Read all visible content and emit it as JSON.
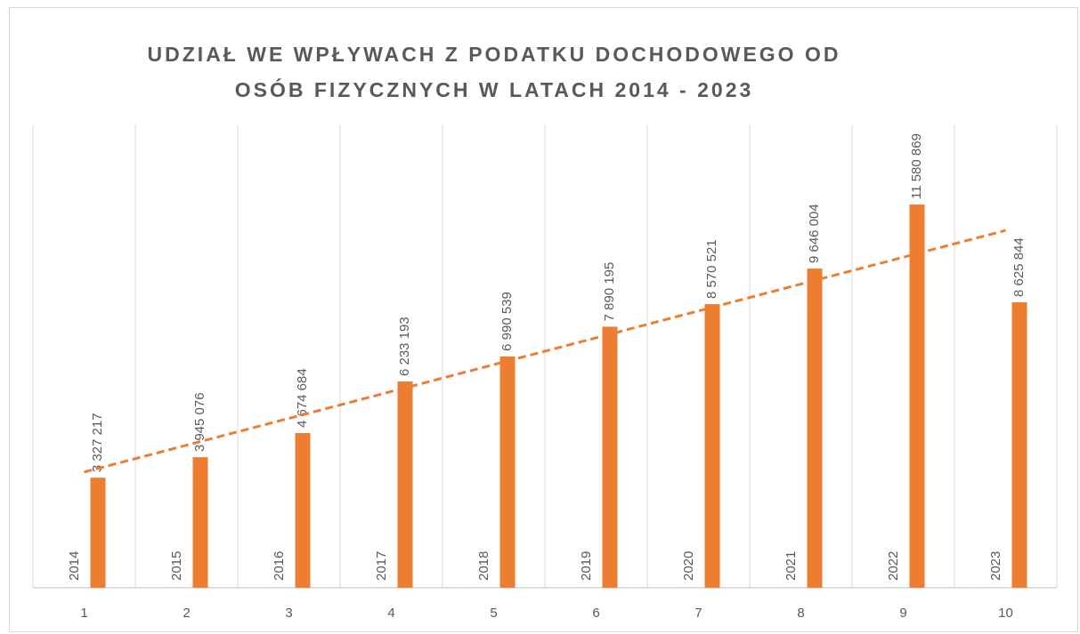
{
  "chart_data": {
    "type": "bar",
    "title": [
      "UDZIAŁ WE WPŁYWACH Z PODATKU DOCHODOWEGO OD",
      "OSÓB FIZYCZNYCH W LATACH 2014 - 2023"
    ],
    "categories": [
      "1",
      "2",
      "3",
      "4",
      "5",
      "6",
      "7",
      "8",
      "9",
      "10"
    ],
    "series": [
      {
        "color": "#ed7d31",
        "values": [
          2014,
          2015,
          2016,
          2017,
          2018,
          2019,
          2020,
          2021,
          2022,
          2023
        ]
      },
      {
        "color": "#ed7d31",
        "values": [
          3327217,
          3945076,
          4674684,
          6233193,
          6990539,
          7890195,
          8570521,
          9646004,
          11580869,
          8625844
        ],
        "value_labels": [
          "3 327 217",
          "3 945 076",
          "4 674 684",
          "6 233 193",
          "6 990 539",
          "7 890 195",
          "8 570 521",
          "9 646 004",
          "11 580 869",
          "8 625 844"
        ],
        "trendline": "linear"
      }
    ],
    "ylim": [
      0,
      14000000
    ],
    "grid": true
  }
}
